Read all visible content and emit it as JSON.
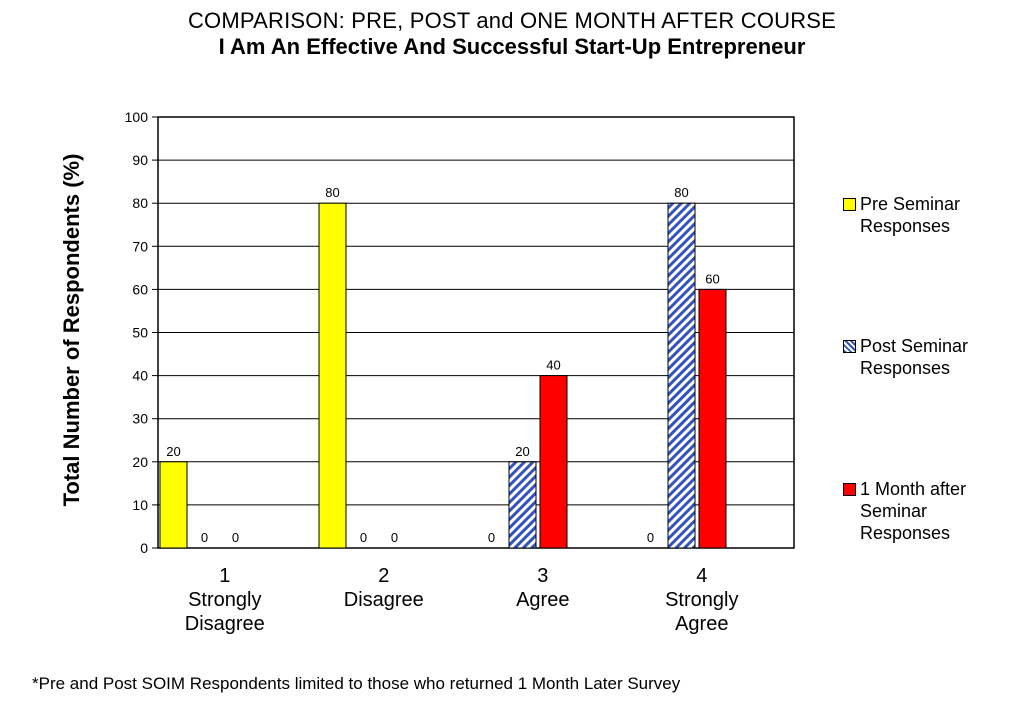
{
  "chart_data": {
    "type": "bar",
    "title": "COMPARISON: PRE,  POST and ONE MONTH AFTER COURSE",
    "subtitle": "I Am An Effective And Successful Start-Up Entrepreneur",
    "ylabel": "Total Number of Respondents (%)",
    "ylim": [
      0,
      100
    ],
    "yticks": [
      0,
      10,
      20,
      30,
      40,
      50,
      60,
      70,
      80,
      90,
      100
    ],
    "grid": true,
    "legend_position": "right",
    "categories": [
      "1",
      "2",
      "3",
      "4"
    ],
    "category_labels": [
      [
        "1",
        "Strongly",
        "Disagree"
      ],
      [
        "2",
        "Disagree"
      ],
      [
        "3",
        "Agree"
      ],
      [
        "4",
        "Strongly",
        "Agree"
      ]
    ],
    "series": [
      {
        "name": "Pre Seminar Responses",
        "legend_lines": [
          "Pre Seminar",
          "Responses"
        ],
        "color": "#ffff00",
        "pattern": "solid",
        "values": [
          20,
          80,
          0,
          0
        ]
      },
      {
        "name": "Post Seminar Responses",
        "legend_lines": [
          "Post Seminar",
          "Responses"
        ],
        "color": "#3355bb",
        "pattern": "diagonal-stripe",
        "values": [
          0,
          0,
          20,
          80
        ]
      },
      {
        "name": "1 Month after Seminar Responses",
        "legend_lines": [
          "1 Month after",
          "Seminar",
          "Responses"
        ],
        "color": "#ff0000",
        "pattern": "solid",
        "values": [
          0,
          0,
          40,
          60
        ]
      }
    ]
  },
  "footnote": "*Pre and Post SOIM Respondents limited to those who returned 1 Month Later Survey"
}
